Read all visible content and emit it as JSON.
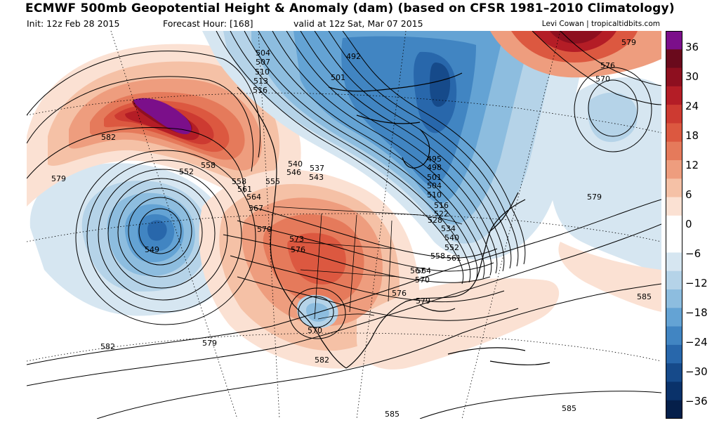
{
  "header": {
    "title": "ECMWF 500mb Geopotential Height & Anomaly (dam) (based on CFSR 1981–2010 Climatology)",
    "init": "Init: 12z Feb 28 2015",
    "forecast_hour": "Forecast Hour: [168]",
    "valid": "valid at 12z Sat, Mar 07 2015",
    "credit": "Levi Cowan | tropicaltidbits.com"
  },
  "colorbar": {
    "ticks": [
      "36",
      "30",
      "24",
      "18",
      "12",
      "6",
      "0",
      "−6",
      "−12",
      "−18",
      "−24",
      "−30",
      "−36"
    ],
    "colors_top_to_bottom": [
      "#7b0f8a",
      "#6a0a1c",
      "#8e0f1f",
      "#b41d26",
      "#cd3a31",
      "#dc5840",
      "#e57a5b",
      "#ee9d7e",
      "#f5c1a6",
      "#fbe1d3",
      "#ffffff",
      "#ffffff",
      "#d6e6f1",
      "#b5d3e8",
      "#8dbddf",
      "#64a3d4",
      "#4185c2",
      "#2867ab",
      "#164a8a",
      "#0a326a",
      "#051f4a"
    ]
  },
  "contour_labels": [
    {
      "text": "504"
    },
    {
      "text": "507"
    },
    {
      "text": "510"
    },
    {
      "text": "513"
    },
    {
      "text": "516"
    },
    {
      "text": "492"
    },
    {
      "text": "501"
    },
    {
      "text": "579"
    },
    {
      "text": "576"
    },
    {
      "text": "570"
    },
    {
      "text": "582"
    },
    {
      "text": "579"
    },
    {
      "text": "552"
    },
    {
      "text": "558"
    },
    {
      "text": "558"
    },
    {
      "text": "561"
    },
    {
      "text": "564"
    },
    {
      "text": "567"
    },
    {
      "text": "570"
    },
    {
      "text": "573"
    },
    {
      "text": "576"
    },
    {
      "text": "540"
    },
    {
      "text": "546"
    },
    {
      "text": "537"
    },
    {
      "text": "543"
    },
    {
      "text": "555"
    },
    {
      "text": "549"
    },
    {
      "text": "495"
    },
    {
      "text": "498"
    },
    {
      "text": "501"
    },
    {
      "text": "504"
    },
    {
      "text": "510"
    },
    {
      "text": "516"
    },
    {
      "text": "522"
    },
    {
      "text": "528"
    },
    {
      "text": "534"
    },
    {
      "text": "540"
    },
    {
      "text": "552"
    },
    {
      "text": "558"
    },
    {
      "text": "561"
    },
    {
      "text": "564"
    },
    {
      "text": "567"
    },
    {
      "text": "570"
    },
    {
      "text": "576"
    },
    {
      "text": "579"
    },
    {
      "text": "579"
    },
    {
      "text": "585"
    },
    {
      "text": "570"
    },
    {
      "text": "582"
    },
    {
      "text": "582"
    },
    {
      "text": "579"
    },
    {
      "text": "585"
    },
    {
      "text": "585"
    }
  ]
}
